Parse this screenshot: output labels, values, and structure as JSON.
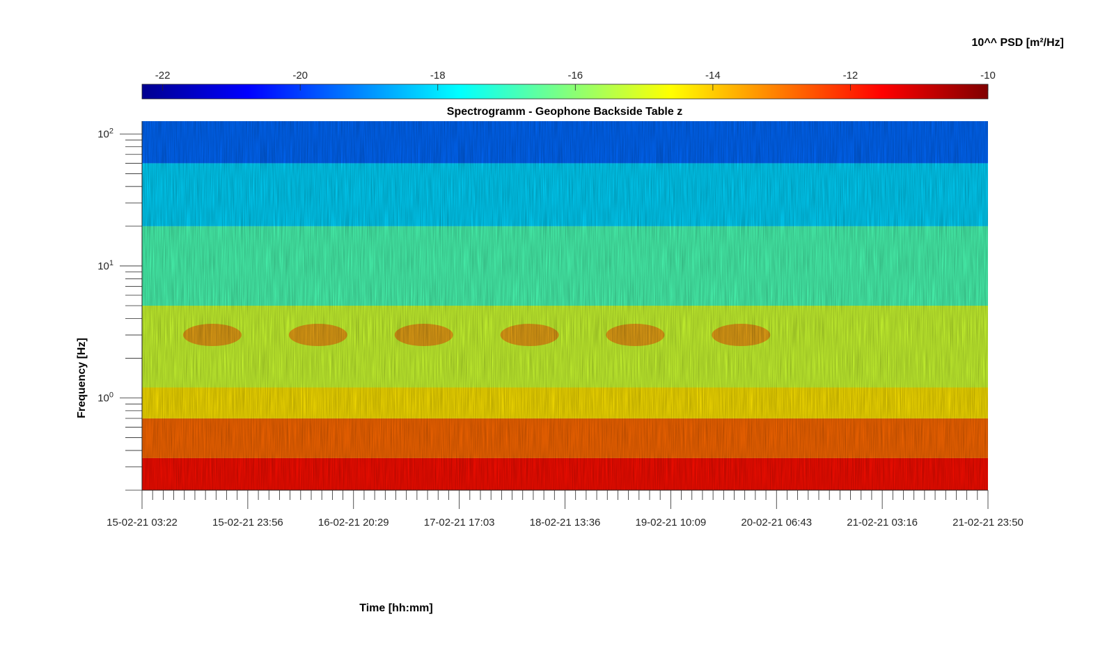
{
  "chart_data": {
    "type": "heatmap",
    "title": "Spectrogramm - Geophone Backside Table z",
    "xlabel": "Time [hh:mm]",
    "ylabel": "Frequency [Hz]",
    "y_scale": "log",
    "ylim": [
      0.2,
      125
    ],
    "x_ticks": [
      "15-02-21 03:22",
      "15-02-21 23:56",
      "16-02-21 20:29",
      "17-02-21 17:03",
      "18-02-21 13:36",
      "19-02-21 10:09",
      "20-02-21 06:43",
      "21-02-21 03:16",
      "21-02-21 23:50"
    ],
    "y_ticks": [
      {
        "value": 1,
        "base": "10",
        "exp": "0"
      },
      {
        "value": 10,
        "base": "10",
        "exp": "1"
      },
      {
        "value": 100,
        "base": "10",
        "exp": "2"
      }
    ],
    "colorbar": {
      "label": "10^^ PSD [m²/Hz]",
      "colormap": "jet",
      "range": [
        -22.3,
        -10
      ],
      "ticks": [
        "-22",
        "-20",
        "-18",
        "-16",
        "-14",
        "-12",
        "-10"
      ],
      "tick_values": [
        -22,
        -20,
        -18,
        -16,
        -14,
        -12,
        -10
      ]
    },
    "bands": [
      {
        "freq_hz": [
          0.2,
          0.35
        ],
        "log_psd": -11.7
      },
      {
        "freq_hz": [
          0.35,
          0.7
        ],
        "log_psd": -12.8
      },
      {
        "freq_hz": [
          0.7,
          1.2
        ],
        "log_psd": -14.3
      },
      {
        "freq_hz": [
          1.2,
          5
        ],
        "log_psd": -15.2
      },
      {
        "freq_hz": [
          5,
          20
        ],
        "log_psd": -16.8
      },
      {
        "freq_hz": [
          20,
          60
        ],
        "log_psd": -18.2
      },
      {
        "freq_hz": [
          60,
          125
        ],
        "log_psd": -19.5
      }
    ],
    "daily_activity_peaks": [
      "15-02-21",
      "16-02-21",
      "17-02-21",
      "18-02-21",
      "19-02-21",
      "20-02-21"
    ]
  }
}
